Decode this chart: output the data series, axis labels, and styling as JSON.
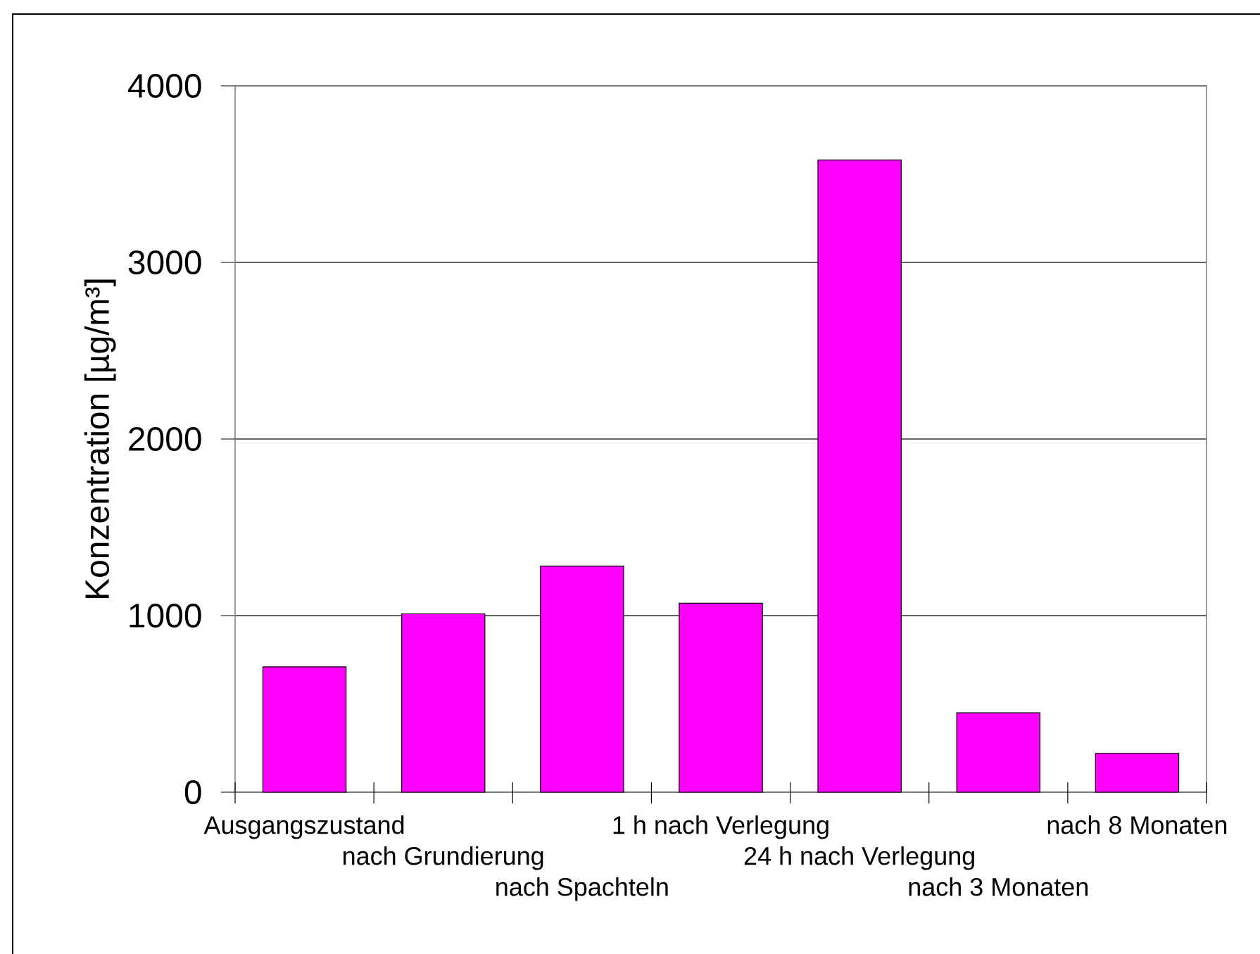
{
  "chart_data": {
    "type": "bar",
    "ylabel": "Konzentration [µg/m³]",
    "categories": [
      "Ausgangszustand",
      "nach Grundierung",
      "nach Spachteln",
      "1 h nach Verlegung",
      "24 h nach Verlegung",
      "nach 3 Monaten",
      "nach 8 Monaten"
    ],
    "values": [
      710,
      1010,
      1280,
      1070,
      3580,
      450,
      220
    ],
    "color": "#ff00ff",
    "ylim": [
      0,
      4000
    ],
    "yticks": [
      0,
      1000,
      2000,
      3000,
      4000
    ],
    "grid": "y"
  }
}
